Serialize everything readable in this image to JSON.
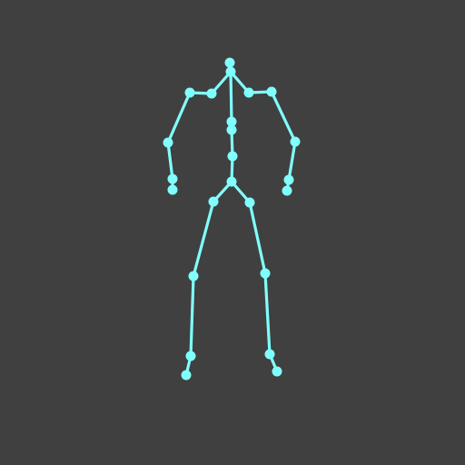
{
  "scene": {
    "background_color": "#404040",
    "skeleton_color": "#80ffff"
  },
  "skeleton": {
    "joint_names": [
      "head-top",
      "neck",
      "left-clavicle",
      "left-shoulder",
      "left-elbow",
      "left-wrist",
      "left-hand",
      "right-clavicle",
      "right-shoulder",
      "right-elbow",
      "right-wrist",
      "right-hand",
      "chest",
      "chest-lower",
      "spine",
      "pelvis",
      "left-hip",
      "left-knee",
      "left-ankle",
      "left-foot",
      "right-hip",
      "right-knee",
      "right-ankle",
      "right-foot"
    ]
  }
}
